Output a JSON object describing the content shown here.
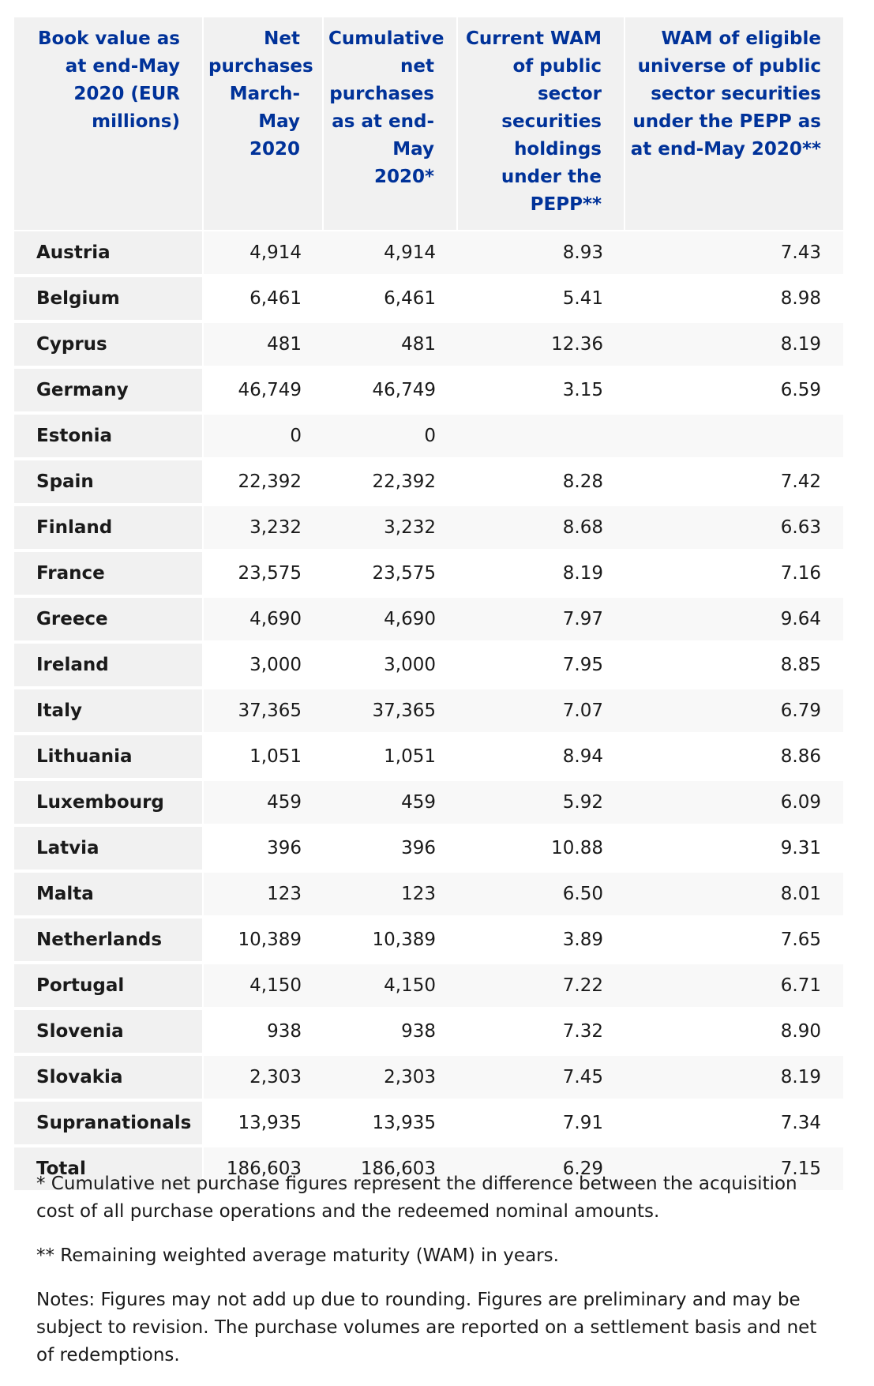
{
  "table": {
    "headers": [
      "Book value as at end-May 2020 (EUR millions)",
      "Net purchases March-May 2020",
      "Cumulative net purchases as at end-May 2020*",
      "Current WAM of public sector securities holdings under the PEPP**",
      "WAM of eligible universe of public sector securities under the PEPP as at end-May 2020**"
    ],
    "rows": [
      {
        "country": "Austria",
        "net": "4,914",
        "cumulative": "4,914",
        "wam_current": "8.93",
        "wam_universe": "7.43"
      },
      {
        "country": "Belgium",
        "net": "6,461",
        "cumulative": "6,461",
        "wam_current": "5.41",
        "wam_universe": "8.98"
      },
      {
        "country": "Cyprus",
        "net": "481",
        "cumulative": "481",
        "wam_current": "12.36",
        "wam_universe": "8.19"
      },
      {
        "country": "Germany",
        "net": "46,749",
        "cumulative": "46,749",
        "wam_current": "3.15",
        "wam_universe": "6.59"
      },
      {
        "country": "Estonia",
        "net": "0",
        "cumulative": "0",
        "wam_current": "",
        "wam_universe": ""
      },
      {
        "country": "Spain",
        "net": "22,392",
        "cumulative": "22,392",
        "wam_current": "8.28",
        "wam_universe": "7.42"
      },
      {
        "country": "Finland",
        "net": "3,232",
        "cumulative": "3,232",
        "wam_current": "8.68",
        "wam_universe": "6.63"
      },
      {
        "country": "France",
        "net": "23,575",
        "cumulative": "23,575",
        "wam_current": "8.19",
        "wam_universe": "7.16"
      },
      {
        "country": "Greece",
        "net": "4,690",
        "cumulative": "4,690",
        "wam_current": "7.97",
        "wam_universe": "9.64"
      },
      {
        "country": "Ireland",
        "net": "3,000",
        "cumulative": "3,000",
        "wam_current": "7.95",
        "wam_universe": "8.85"
      },
      {
        "country": "Italy",
        "net": "37,365",
        "cumulative": "37,365",
        "wam_current": "7.07",
        "wam_universe": "6.79"
      },
      {
        "country": "Lithuania",
        "net": "1,051",
        "cumulative": "1,051",
        "wam_current": "8.94",
        "wam_universe": "8.86"
      },
      {
        "country": "Luxembourg",
        "net": "459",
        "cumulative": "459",
        "wam_current": "5.92",
        "wam_universe": "6.09"
      },
      {
        "country": "Latvia",
        "net": "396",
        "cumulative": "396",
        "wam_current": "10.88",
        "wam_universe": "9.31"
      },
      {
        "country": "Malta",
        "net": "123",
        "cumulative": "123",
        "wam_current": "6.50",
        "wam_universe": "8.01"
      },
      {
        "country": "Netherlands",
        "net": "10,389",
        "cumulative": "10,389",
        "wam_current": "3.89",
        "wam_universe": "7.65"
      },
      {
        "country": "Portugal",
        "net": "4,150",
        "cumulative": "4,150",
        "wam_current": "7.22",
        "wam_universe": "6.71"
      },
      {
        "country": "Slovenia",
        "net": "938",
        "cumulative": "938",
        "wam_current": "7.32",
        "wam_universe": "8.90"
      },
      {
        "country": "Slovakia",
        "net": "2,303",
        "cumulative": "2,303",
        "wam_current": "7.45",
        "wam_universe": "8.19"
      },
      {
        "country": "Supranationals",
        "net": "13,935",
        "cumulative": "13,935",
        "wam_current": "7.91",
        "wam_universe": "7.34"
      },
      {
        "country": "Total",
        "net": "186,603",
        "cumulative": "186,603",
        "wam_current": "6.29",
        "wam_universe": "7.15"
      }
    ]
  },
  "footnotes": [
    "* Cumulative net purchase figures represent the difference between the acquisition cost of all purchase operations and the redeemed nominal amounts.",
    "** Remaining weighted average maturity (WAM) in years.",
    "Notes: Figures may not add up due to rounding. Figures are preliminary and may be subject to revision. The purchase volumes are reported on a settlement basis and net of redemptions."
  ],
  "colors": {
    "header_text": "#003299",
    "header_bg": "#f1f1f1",
    "row_alt_bg": "#f8f8f8"
  }
}
